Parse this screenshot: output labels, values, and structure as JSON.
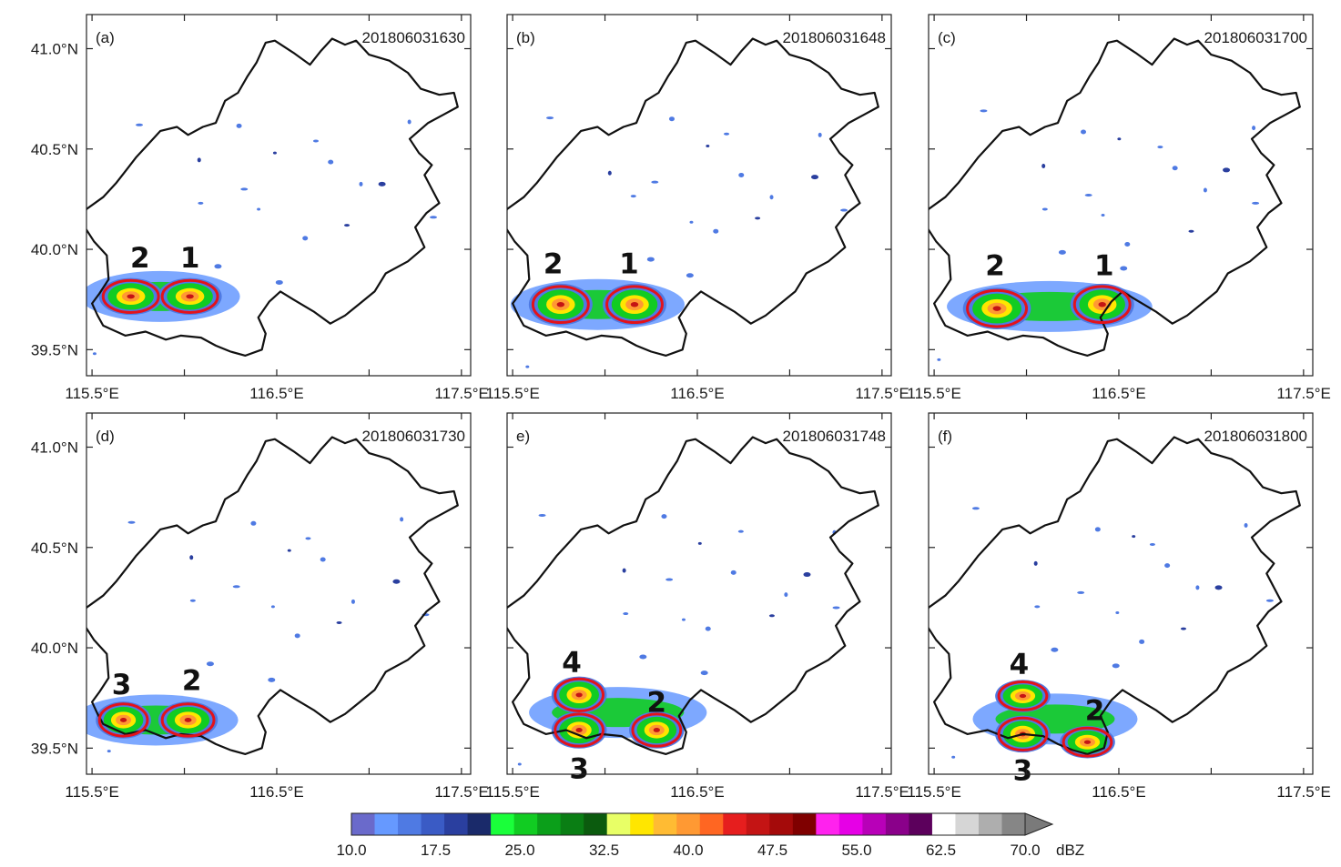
{
  "figure": {
    "panels": [
      {
        "label": "(a)",
        "timestamp": "201806031630",
        "storms": [
          {
            "id": "2",
            "lon": 115.71,
            "lat": 39.765,
            "rlon": 0.15,
            "rlat": 0.08,
            "label_lon": 115.76,
            "label_lat": 39.96
          },
          {
            "id": "1",
            "lon": 116.03,
            "lat": 39.765,
            "rlon": 0.15,
            "rlat": 0.08,
            "label_lon": 116.03,
            "label_lat": 39.96
          }
        ]
      },
      {
        "label": "(b)",
        "timestamp": "201806031648",
        "storms": [
          {
            "id": "2",
            "lon": 115.76,
            "lat": 39.725,
            "rlon": 0.15,
            "rlat": 0.09,
            "label_lon": 115.72,
            "label_lat": 39.93
          },
          {
            "id": "1",
            "lon": 116.16,
            "lat": 39.725,
            "rlon": 0.15,
            "rlat": 0.09,
            "label_lon": 116.13,
            "label_lat": 39.93
          }
        ]
      },
      {
        "label": "(c)",
        "timestamp": "201806031700",
        "storms": [
          {
            "id": "2",
            "lon": 115.84,
            "lat": 39.705,
            "rlon": 0.16,
            "rlat": 0.09,
            "label_lon": 115.83,
            "label_lat": 39.92
          },
          {
            "id": "1",
            "lon": 116.41,
            "lat": 39.725,
            "rlon": 0.15,
            "rlat": 0.09,
            "label_lon": 116.42,
            "label_lat": 39.92
          }
        ]
      },
      {
        "label": "(d)",
        "timestamp": "201806031730",
        "storms": [
          {
            "id": "3",
            "lon": 115.67,
            "lat": 39.64,
            "rlon": 0.13,
            "rlat": 0.08,
            "label_lon": 115.66,
            "label_lat": 39.82
          },
          {
            "id": "2",
            "lon": 116.02,
            "lat": 39.64,
            "rlon": 0.14,
            "rlat": 0.08,
            "label_lon": 116.04,
            "label_lat": 39.84
          }
        ]
      },
      {
        "label": "e)",
        "timestamp": "201806031748",
        "storms": [
          {
            "id": "4",
            "lon": 115.86,
            "lat": 39.765,
            "rlon": 0.13,
            "rlat": 0.08,
            "label_lon": 115.82,
            "label_lat": 39.93
          },
          {
            "id": "3",
            "lon": 115.86,
            "lat": 39.59,
            "rlon": 0.13,
            "rlat": 0.08,
            "label_lon": 115.86,
            "label_lat": 39.4
          },
          {
            "id": "2",
            "lon": 116.28,
            "lat": 39.59,
            "rlon": 0.13,
            "rlat": 0.08,
            "label_lon": 116.28,
            "label_lat": 39.73
          }
        ]
      },
      {
        "label": "(f)",
        "timestamp": "201806031800",
        "storms": [
          {
            "id": "4",
            "lon": 115.98,
            "lat": 39.76,
            "rlon": 0.13,
            "rlat": 0.07,
            "label_lon": 115.96,
            "label_lat": 39.92
          },
          {
            "id": "3",
            "lon": 115.98,
            "lat": 39.57,
            "rlon": 0.13,
            "rlat": 0.08,
            "label_lon": 115.98,
            "label_lat": 39.39
          },
          {
            "id": "2",
            "lon": 116.33,
            "lat": 39.53,
            "rlon": 0.13,
            "rlat": 0.07,
            "label_lon": 116.37,
            "label_lat": 39.69
          }
        ]
      }
    ],
    "axes": {
      "lon_ticks": [
        "115.5°E",
        "116.5°E",
        "117.5°E"
      ],
      "lon_tick_values": [
        115.5,
        116.5,
        117.5
      ],
      "lon_minor": [
        116.0,
        117.0
      ],
      "lat_ticks": [
        "41.0°N",
        "40.5°N",
        "40.0°N",
        "39.5°N"
      ],
      "lat_tick_values": [
        41.0,
        40.5,
        40.0,
        39.5
      ],
      "lon_range": [
        115.47,
        117.55
      ],
      "lat_range": [
        39.37,
        41.17
      ]
    },
    "colorbar": {
      "unit": "dBZ",
      "labels": [
        "10.0",
        "17.5",
        "25.0",
        "32.5",
        "40.0",
        "47.5",
        "55.0",
        "62.5",
        "70.0"
      ],
      "colors": [
        "#6a6acb",
        "#6699ff",
        "#4f7ae3",
        "#3a5bc5",
        "#2a3f9f",
        "#1a2a6a",
        "#1aff3a",
        "#11cc22",
        "#0b9f1a",
        "#0a7e14",
        "#0b5b0e",
        "#e8ff66",
        "#ffe600",
        "#ffbb33",
        "#ff9933",
        "#ff6622",
        "#e61e1e",
        "#c41414",
        "#a40a0a",
        "#7f0000",
        "#ff22ee",
        "#e600e6",
        "#b800b8",
        "#8a008a",
        "#5c005c",
        "#ffffff",
        "#d6d6d6",
        "#aeaeae",
        "#868686"
      ]
    }
  }
}
